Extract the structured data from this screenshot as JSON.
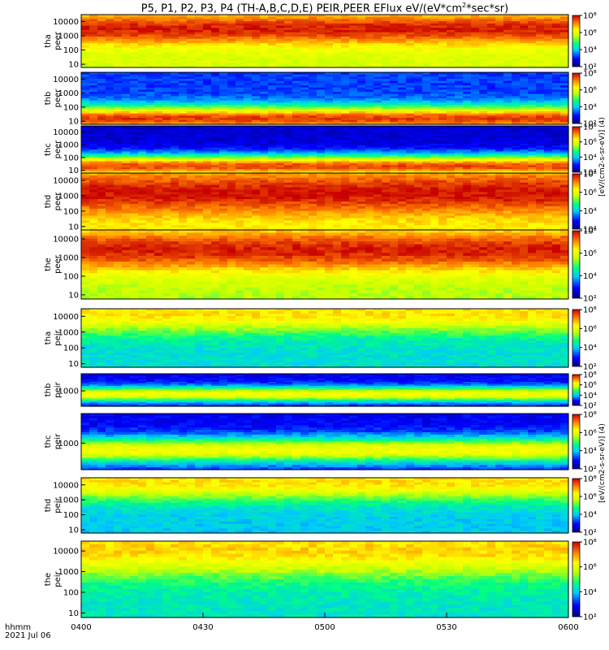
{
  "title_parts": {
    "prefix": "P5, P1, P2, P3, P4 (TH-A,B,C,D,E) PEIR,PEER EFlux eV/(eV*cm",
    "sup": "2",
    "suffix": "*sec*sr)"
  },
  "time_axis": {
    "format_label": "hhmm",
    "date_label": "2021 Jul 06",
    "ticks": [
      "0400",
      "0430",
      "0500",
      "0530",
      "0600"
    ],
    "range_hours": [
      4.0,
      6.0
    ]
  },
  "colorbar": {
    "side_label_electron": "[eV/(cm2-s-sr-eV)] (4)",
    "side_label_ion": "[eV/(cm2-s-sr-eV)] (4)",
    "tick_labels": [
      "10⁸",
      "10⁶",
      "10⁴",
      "10²"
    ],
    "range_log10": [
      2,
      8
    ],
    "scale": "rainbow"
  },
  "chart_data": [
    {
      "type": "heatmap",
      "probe": "tha",
      "species": "peer",
      "ylabel_line1": "tha",
      "ylabel_line2": "peer",
      "y_scale": "log",
      "y_ticks": [
        "10000",
        "1000",
        "100",
        "10"
      ],
      "ylim": [
        6,
        30000
      ],
      "description_profile": {
        "peak_energy": 3000,
        "width": 1.1,
        "peak_log10": 7.8,
        "floor_log10": 5.8
      }
    },
    {
      "type": "heatmap",
      "probe": "thb",
      "species": "peer",
      "ylabel_line1": "thb",
      "ylabel_line2": "peer",
      "y_scale": "log",
      "y_ticks": [
        "10000",
        "1000",
        "100",
        "10"
      ],
      "ylim": [
        6,
        30000
      ],
      "description_profile": {
        "peak_energy": 15,
        "width": 0.9,
        "peak_log10": 7.6,
        "floor_log10": 3.2
      }
    },
    {
      "type": "heatmap",
      "probe": "thc",
      "species": "peer",
      "ylabel_line1": "thc",
      "ylabel_line2": "peer",
      "y_scale": "log",
      "y_ticks": [
        "10000",
        "1000",
        "100",
        "10"
      ],
      "ylim": [
        6,
        30000
      ],
      "description_profile": {
        "peak_energy": 20,
        "width": 0.9,
        "peak_log10": 7.5,
        "floor_log10": 2.6
      }
    },
    {
      "type": "heatmap",
      "probe": "thd",
      "species": "peer",
      "ylabel_line1": "thd",
      "ylabel_line2": "peer",
      "y_scale": "log",
      "y_ticks": [
        "10000",
        "1000",
        "100",
        "10"
      ],
      "ylim": [
        6,
        30000
      ],
      "description_profile": {
        "peak_energy": 1500,
        "width": 1.3,
        "peak_log10": 7.9,
        "floor_log10": 6.3
      }
    },
    {
      "type": "heatmap",
      "probe": "the",
      "species": "peer",
      "ylabel_line1": "the",
      "ylabel_line2": "peer",
      "y_scale": "log",
      "y_ticks": [
        "10000",
        "1000",
        "100",
        "10"
      ],
      "ylim": [
        6,
        30000
      ],
      "description_profile": {
        "peak_energy": 2500,
        "width": 1.2,
        "peak_log10": 7.8,
        "floor_log10": 5.5
      }
    },
    {
      "type": "heatmap",
      "probe": "tha",
      "species": "peir",
      "ylabel_line1": "tha",
      "ylabel_line2": "peir",
      "y_scale": "log",
      "y_ticks": [
        "10000",
        "1000",
        "100",
        "10"
      ],
      "ylim": [
        6,
        30000
      ],
      "description_profile": {
        "peak_energy": 15000,
        "width": 1.2,
        "peak_log10": 6.5,
        "floor_log10": 4.2
      }
    },
    {
      "type": "heatmap",
      "probe": "thb",
      "species": "peir",
      "ylabel_line1": "thb",
      "ylabel_line2": "peir",
      "y_scale": "log",
      "y_ticks": [
        "1000"
      ],
      "ylim": [
        200,
        6000
      ],
      "description_profile": {
        "peak_energy": 700,
        "width": 0.35,
        "peak_log10": 6.2,
        "floor_log10": 2.8
      }
    },
    {
      "type": "heatmap",
      "probe": "thc",
      "species": "peir",
      "ylabel_line1": "thc",
      "ylabel_line2": "peir",
      "y_scale": "log",
      "y_ticks": [
        "1000"
      ],
      "ylim": [
        200,
        6000
      ],
      "description_profile": {
        "peak_energy": 650,
        "width": 0.35,
        "peak_log10": 6.2,
        "floor_log10": 2.8
      }
    },
    {
      "type": "heatmap",
      "probe": "thd",
      "species": "peir",
      "ylabel_line1": "thd",
      "ylabel_line2": "peir",
      "y_scale": "log",
      "y_ticks": [
        "10000",
        "1000",
        "100",
        "10"
      ],
      "ylim": [
        6,
        30000
      ],
      "description_profile": {
        "peak_energy": 15000,
        "width": 1.2,
        "peak_log10": 6.5,
        "floor_log10": 4.0
      }
    },
    {
      "type": "heatmap",
      "probe": "the",
      "species": "peir",
      "ylabel_line1": "the",
      "ylabel_line2": "peir",
      "y_scale": "log",
      "y_ticks": [
        "10000",
        "1000",
        "100",
        "10"
      ],
      "ylim": [
        6,
        30000
      ],
      "description_profile": {
        "peak_energy": 12000,
        "width": 1.3,
        "peak_log10": 6.6,
        "floor_log10": 4.3
      }
    }
  ]
}
